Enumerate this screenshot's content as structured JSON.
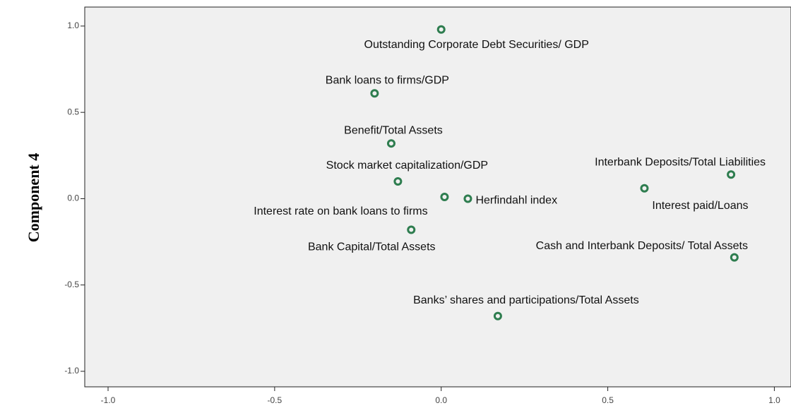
{
  "chart_data": {
    "type": "scatter",
    "y_label": "Component 4",
    "x": [
      0.0,
      -0.2,
      -0.15,
      -0.13,
      0.01,
      0.08,
      0.87,
      0.61,
      -0.09,
      0.88,
      0.17
    ],
    "values": [
      0.98,
      0.61,
      0.32,
      0.1,
      0.01,
      0.0,
      0.14,
      0.06,
      -0.18,
      -0.34,
      -0.68
    ],
    "labels": [
      "Outstanding Corporate Debt Securities/ GDP",
      "Bank loans to firms/GDP",
      "Benefit/Total Assets",
      "Stock market capitalization/GDP",
      "Interest rate on bank loans to firms",
      "Herfindahl index",
      "Interbank Deposits/Total Liabilities",
      "Interest paid/Loans",
      "Bank Capital/Total Assets",
      "Cash and Interbank Deposits/ Total Assets",
      "Banks’ shares and participations/Total Assets"
    ],
    "color": "#2e7d4f",
    "xlim": [
      -1.07,
      1.05
    ],
    "ylim": [
      -1.09,
      1.11
    ],
    "xticks": [
      {
        "value": -1,
        "label": "-1.0"
      },
      -0.5,
      {
        "value": 0,
        "label": "0.0"
      },
      0.5,
      {
        "value": 1,
        "label": "1.0"
      }
    ],
    "yticks": [
      {
        "value": -1,
        "label": "-1.0"
      },
      -0.5,
      {
        "value": 0,
        "label": "0.0"
      },
      0.5,
      {
        "value": 1,
        "label": "1.0"
      }
    ]
  }
}
